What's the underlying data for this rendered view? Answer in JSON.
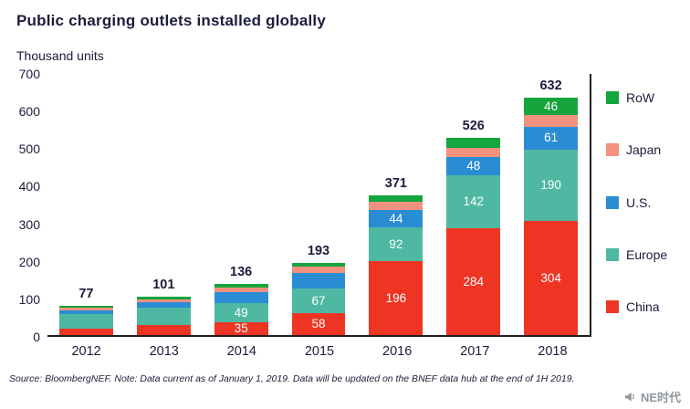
{
  "title": "Public charging outlets installed globally",
  "units_label": "Thousand units",
  "footer": {
    "source": "Source: BloombergNEF. Note: Data current as of January 1, 2019. Data will be updated on the BNEF data hub at the end of 1H 2019.",
    "watermark": "NE时代"
  },
  "chart_data": {
    "type": "bar",
    "stacked": true,
    "title": "Public charging outlets installed globally",
    "ylabel": "Thousand units",
    "xlabel": "",
    "categories": [
      "2012",
      "2013",
      "2014",
      "2015",
      "2016",
      "2017",
      "2018"
    ],
    "series": [
      {
        "name": "China",
        "color": "#ee3524",
        "values": [
          18,
          27,
          35,
          58,
          196,
          284,
          304
        ],
        "shown_labels": [
          null,
          null,
          35,
          58,
          196,
          284,
          304
        ]
      },
      {
        "name": "Europe",
        "color": "#4fb8a3",
        "values": [
          38,
          45,
          49,
          67,
          92,
          142,
          190
        ],
        "shown_labels": [
          null,
          null,
          49,
          67,
          92,
          142,
          190
        ]
      },
      {
        "name": "U.S.",
        "color": "#2a8dd4",
        "values": [
          10,
          15,
          30,
          40,
          44,
          48,
          61
        ],
        "shown_labels": [
          null,
          null,
          null,
          null,
          44,
          48,
          61
        ]
      },
      {
        "name": "Japan",
        "color": "#f2917f",
        "values": [
          7,
          9,
          13,
          17,
          22,
          24,
          31
        ],
        "shown_labels": [
          null,
          null,
          null,
          null,
          null,
          null,
          null
        ]
      },
      {
        "name": "RoW",
        "color": "#14a53c",
        "values": [
          4,
          5,
          9,
          11,
          17,
          28,
          46
        ],
        "shown_labels": [
          null,
          null,
          null,
          null,
          null,
          null,
          46
        ]
      }
    ],
    "totals": [
      77,
      101,
      136,
      193,
      371,
      526,
      632
    ],
    "ylim": [
      0,
      700
    ],
    "yticks": [
      0,
      100,
      200,
      300,
      400,
      500,
      600,
      700
    ],
    "legend_order": [
      "RoW",
      "Japan",
      "U.S.",
      "Europe",
      "China"
    ],
    "legend_position": "right",
    "grid": false
  }
}
